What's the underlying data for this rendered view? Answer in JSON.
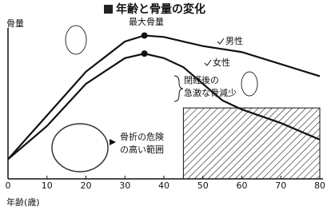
{
  "chart_data": {
    "type": "line",
    "title": "年齢と骨量の変化",
    "x_label": "年齢(歳)",
    "y_label": "骨量",
    "x": [
      0,
      10,
      20,
      30,
      35,
      40,
      45,
      50,
      55,
      60,
      70,
      80
    ],
    "series": [
      {
        "name": "男性",
        "color": "#111111",
        "values": [
          13,
          42,
          71,
          91,
          95,
          94,
          91,
          88,
          86,
          84,
          76,
          68
        ]
      },
      {
        "name": "女性",
        "color": "#111111",
        "values": [
          13,
          35,
          63,
          80,
          83,
          80,
          74,
          63,
          52,
          46,
          37,
          26
        ]
      }
    ],
    "xlim": [
      0,
      80
    ],
    "ylim": [
      0,
      100
    ],
    "xticks": [
      0,
      10,
      20,
      30,
      40,
      50,
      60,
      70,
      80
    ],
    "risk_zone": {
      "xlim": [
        45,
        80
      ],
      "ylim": [
        0,
        47
      ]
    },
    "annotations": [
      "最大骨量",
      "閉経後の",
      "急激な骨減少",
      "骨折の危険",
      "の高い範囲"
    ]
  }
}
